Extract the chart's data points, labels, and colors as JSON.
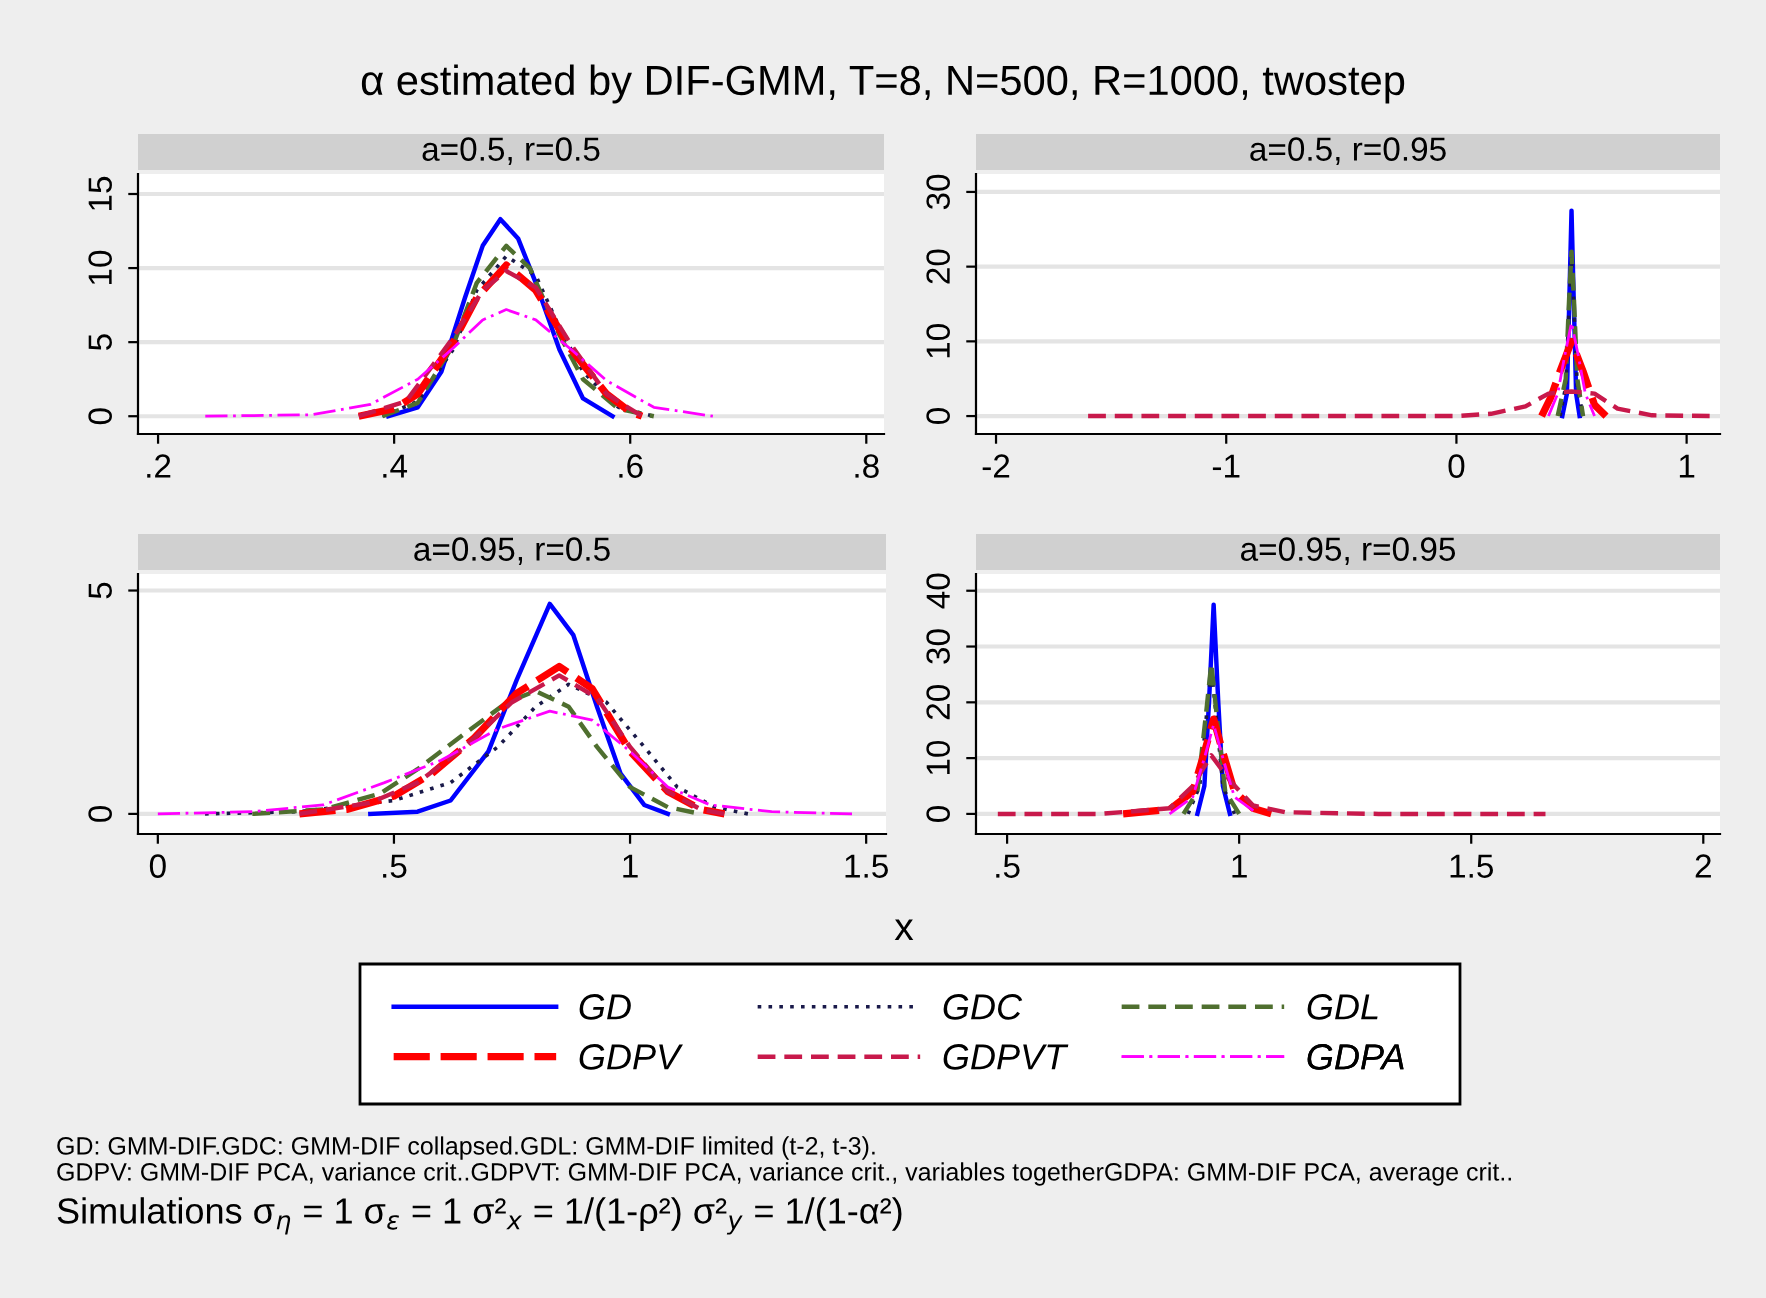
{
  "chart_data": [
    {
      "type": "line",
      "title": "α estimated by DIF-GMM, T=8, N=500, R=1000, twostep",
      "subtitle": "a=0.5, r=0.5",
      "xlim": [
        0.183,
        0.815
      ],
      "ylim": [
        -1.2,
        16.35
      ],
      "xticks": [
        {
          "value": 0.2,
          "label": ".2"
        },
        {
          "value": 0.4,
          "label": ".4"
        },
        {
          "value": 0.6,
          "label": ".6"
        },
        {
          "value": 0.8,
          "label": ".8"
        }
      ],
      "yticks": [
        0,
        5,
        10,
        15
      ],
      "grid": "y",
      "series": [
        {
          "color": "#0000ff",
          "line_style": "solid",
          "x": [
            0.395,
            0.42,
            0.44,
            0.46,
            0.475,
            0.49,
            0.505,
            0.52,
            0.54,
            0.56,
            0.585
          ],
          "values": [
            0,
            0.6,
            3,
            8,
            11.5,
            13.3,
            12,
            9,
            4.5,
            1.2,
            0
          ]
        },
        {
          "color": "#1a1a4a",
          "line_style": "dotted",
          "x": [
            0.39,
            0.42,
            0.45,
            0.47,
            0.495,
            0.52,
            0.54,
            0.56,
            0.59,
            0.62
          ],
          "values": [
            0,
            1,
            4.5,
            8.5,
            10.8,
            9.5,
            6,
            3,
            0.6,
            0
          ]
        },
        {
          "color": "#4f6f2f",
          "line_style": "dashed",
          "x": [
            0.39,
            0.42,
            0.45,
            0.47,
            0.495,
            0.515,
            0.54,
            0.56,
            0.59,
            0.62
          ],
          "values": [
            0,
            0.9,
            4.8,
            9,
            11.5,
            10,
            5.5,
            2.5,
            0.5,
            0
          ]
        },
        {
          "color": "#ff0000",
          "line_style": "longdash",
          "x": [
            0.37,
            0.4,
            0.42,
            0.45,
            0.47,
            0.495,
            0.52,
            0.55,
            0.58,
            0.6,
            0.61
          ],
          "values": [
            0,
            0.5,
            1.5,
            5,
            8,
            10.2,
            8.5,
            4.5,
            1.5,
            0.3,
            0
          ]
        },
        {
          "color": "#c8194b",
          "line_style": "dashed",
          "x": [
            0.37,
            0.41,
            0.45,
            0.475,
            0.495,
            0.52,
            0.55,
            0.58,
            0.61
          ],
          "values": [
            0,
            1,
            5.3,
            8.5,
            9.8,
            8.7,
            4.8,
            1.5,
            0
          ]
        },
        {
          "color": "#ff00ff",
          "line_style": "dashdot",
          "x": [
            0.24,
            0.33,
            0.38,
            0.42,
            0.45,
            0.475,
            0.495,
            0.52,
            0.55,
            0.58,
            0.62,
            0.67
          ],
          "values": [
            0,
            0.1,
            0.8,
            2.5,
            4.6,
            6.5,
            7.2,
            6.5,
            4.5,
            2.4,
            0.6,
            0
          ]
        }
      ]
    },
    {
      "type": "line",
      "subtitle": "a=0.5, r=0.95",
      "xlim": [
        -2.087,
        1.145
      ],
      "ylim": [
        -2.4,
        32.4
      ],
      "xticks": [
        -2,
        -1,
        0,
        1
      ],
      "yticks": [
        0,
        10,
        20,
        30
      ],
      "grid": "y",
      "series": [
        {
          "color": "#0000ff",
          "line_style": "solid",
          "x": [
            0.46,
            0.48,
            0.49,
            0.5,
            0.51,
            0.52,
            0.535
          ],
          "values": [
            0,
            3,
            15,
            27.5,
            15,
            3,
            0
          ]
        },
        {
          "color": "#1a1a4a",
          "line_style": "dotted",
          "x": [
            0.45,
            0.475,
            0.49,
            0.5,
            0.51,
            0.525,
            0.55
          ],
          "values": [
            0,
            4,
            15,
            21,
            15,
            4,
            0
          ]
        },
        {
          "color": "#4f6f2f",
          "line_style": "dashed",
          "x": [
            0.44,
            0.475,
            0.49,
            0.5,
            0.51,
            0.525,
            0.55
          ],
          "values": [
            0,
            5,
            16,
            22,
            16,
            5,
            0
          ]
        },
        {
          "color": "#ff0000",
          "line_style": "longdash",
          "x": [
            0.37,
            0.41,
            0.45,
            0.5,
            0.55,
            0.6,
            0.65
          ],
          "values": [
            0,
            2.5,
            6,
            10,
            6,
            1.5,
            0
          ]
        },
        {
          "color": "#c8194b",
          "line_style": "dashed",
          "x": [
            -1.6,
            -0.5,
            0,
            0.15,
            0.3,
            0.4,
            0.5,
            0.6,
            0.7,
            0.85,
            1.1
          ],
          "values": [
            0,
            0,
            0,
            0.3,
            1.3,
            3,
            3.3,
            3,
            1,
            0.1,
            0
          ]
        },
        {
          "color": "#ff00ff",
          "line_style": "dashdot",
          "x": [
            0.4,
            0.44,
            0.47,
            0.5,
            0.53,
            0.56,
            0.6
          ],
          "values": [
            0,
            3,
            8,
            12.5,
            8,
            3,
            0
          ]
        }
      ]
    },
    {
      "type": "line",
      "subtitle": "a=0.95, r=0.5",
      "xlabel": "x",
      "xlim": [
        -0.042,
        1.542
      ],
      "ylim": [
        -0.45,
        5.37
      ],
      "xticks": [
        0,
        {
          "value": 0.5,
          "label": ".5"
        },
        1,
        1.5
      ],
      "yticks": [
        0,
        5
      ],
      "grid": "y",
      "series": [
        {
          "color": "#0000ff",
          "line_style": "solid",
          "x": [
            0.45,
            0.55,
            0.62,
            0.7,
            0.76,
            0.83,
            0.88,
            0.93,
            0.98,
            1.03,
            1.08
          ],
          "values": [
            0,
            0.05,
            0.3,
            1.4,
            3,
            4.7,
            4,
            2.4,
            0.9,
            0.2,
            0
          ]
        },
        {
          "color": "#1a1a4a",
          "line_style": "dotted",
          "x": [
            0.1,
            0.3,
            0.5,
            0.62,
            0.72,
            0.8,
            0.87,
            0.95,
            1.03,
            1.1,
            1.18,
            1.25
          ],
          "values": [
            0,
            0.05,
            0.3,
            0.7,
            1.5,
            2.4,
            2.9,
            2.5,
            1.5,
            0.6,
            0.15,
            0
          ]
        },
        {
          "color": "#4f6f2f",
          "line_style": "dashed",
          "x": [
            0.2,
            0.35,
            0.47,
            0.55,
            0.65,
            0.74,
            0.8,
            0.87,
            0.93,
            1.0,
            1.08,
            1.15
          ],
          "values": [
            0,
            0.1,
            0.45,
            1,
            1.8,
            2.5,
            2.75,
            2.4,
            1.5,
            0.6,
            0.15,
            0
          ]
        },
        {
          "color": "#ff0000",
          "line_style": "longdash",
          "x": [
            0.3,
            0.4,
            0.5,
            0.58,
            0.67,
            0.76,
            0.85,
            0.92,
            1.0,
            1.08,
            1.15,
            1.2
          ],
          "values": [
            0,
            0.1,
            0.4,
            0.9,
            1.7,
            2.7,
            3.3,
            2.8,
            1.4,
            0.5,
            0.1,
            0
          ]
        },
        {
          "color": "#c8194b",
          "line_style": "dashed",
          "x": [
            0.3,
            0.45,
            0.55,
            0.65,
            0.75,
            0.85,
            0.93,
            1.0,
            1.08,
            1.15,
            1.2
          ],
          "values": [
            0,
            0.25,
            0.7,
            1.5,
            2.5,
            3.1,
            2.6,
            1.5,
            0.5,
            0.1,
            0
          ]
        },
        {
          "color": "#ff00ff",
          "line_style": "dashdot",
          "x": [
            0,
            0.2,
            0.35,
            0.48,
            0.6,
            0.72,
            0.83,
            0.92,
            1.0,
            1.08,
            1.17,
            1.3,
            1.47
          ],
          "values": [
            0,
            0.05,
            0.2,
            0.7,
            1.2,
            1.9,
            2.3,
            2.1,
            1.4,
            0.6,
            0.2,
            0.05,
            0
          ]
        }
      ]
    },
    {
      "type": "line",
      "subtitle": "a=0.95, r=0.95",
      "xlim": [
        0.433,
        2.036
      ],
      "ylim": [
        -3.6,
        43
      ],
      "xticks": [
        {
          "value": 0.5,
          "label": ".5"
        },
        1,
        1.5,
        2
      ],
      "yticks": [
        0,
        10,
        20,
        30,
        40
      ],
      "grid": "y",
      "legend": "bottom",
      "annotations": [
        "GD: GMM-DIF.GDC: GMM-DIF collapsed.GDL: GMM-DIF limited (t-2, t-3).",
        "GDPV: GMM-DIF PCA, variance crit..GDPVT: GMM-DIF PCA, variance crit., variables togetherGDPA: GMM-DIF PCA, average crit..",
        "Simulations σ$_{η}$ = 1 σ$_{ε}$ = 1 σ²$_{x}$ = 1/(1-ρ²) σ²$_{y}$ = 1/(1-α²)"
      ],
      "series": [
        {
          "name": "GD",
          "color": "#0000ff",
          "line_style": "solid",
          "x": [
            0.91,
            0.925,
            0.935,
            0.945,
            0.955,
            0.965,
            0.98
          ],
          "values": [
            0,
            5,
            20,
            37.5,
            20,
            5,
            0
          ]
        },
        {
          "name": "GDC",
          "color": "#1a1a4a",
          "line_style": "dotted",
          "x": [
            0.89,
            0.915,
            0.93,
            0.94,
            0.95,
            0.965,
            0.99
          ],
          "values": [
            0,
            5,
            18,
            26,
            18,
            5,
            0
          ]
        },
        {
          "name": "GDL",
          "color": "#4f6f2f",
          "line_style": "dashed",
          "x": [
            0.88,
            0.91,
            0.93,
            0.94,
            0.95,
            0.97,
            1.0
          ],
          "values": [
            0,
            4,
            19,
            27,
            19,
            4,
            0
          ]
        },
        {
          "name": "GDPV",
          "color": "#ff0000",
          "line_style": "longdash",
          "x": [
            0.75,
            0.85,
            0.9,
            0.925,
            0.945,
            0.965,
            0.99,
            1.03,
            1.07
          ],
          "values": [
            0,
            0.8,
            4,
            11,
            17,
            11,
            4,
            1,
            0
          ]
        },
        {
          "name": "GDPVT",
          "color": "#c8194b",
          "line_style": "dashed",
          "x": [
            0.48,
            0.7,
            0.85,
            0.9,
            0.94,
            0.98,
            1.03,
            1.1,
            1.3,
            1.66
          ],
          "values": [
            0,
            0,
            1,
            5,
            10.5,
            6,
            1.5,
            0.3,
            0,
            0
          ]
        },
        {
          "name": "GDPA",
          "color": "#ff00ff",
          "line_style": "dashdot",
          "x": [
            0.85,
            0.9,
            0.925,
            0.945,
            0.965,
            0.99,
            1.04
          ],
          "values": [
            0,
            3,
            10,
            16,
            10,
            3,
            0
          ]
        }
      ]
    }
  ]
}
